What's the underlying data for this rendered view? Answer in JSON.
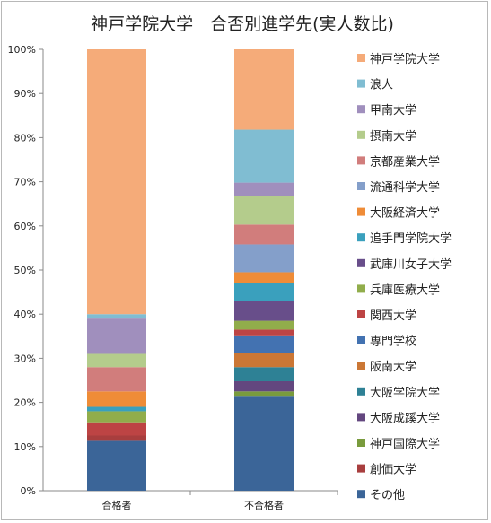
{
  "chart_data": {
    "type": "bar",
    "stacked": true,
    "title": "神戸学院大学　合否別進学先(実人数比)",
    "categories": [
      "合格者",
      "不合格者"
    ],
    "ylim": [
      0,
      100
    ],
    "yticks": [
      "0%",
      "10%",
      "20%",
      "30%",
      "40%",
      "50%",
      "60%",
      "70%",
      "80%",
      "90%",
      "100%"
    ],
    "legend_position": "right",
    "grid": false,
    "series": [
      {
        "name": "その他",
        "color": "#3b6598",
        "values": [
          11.3,
          21.5
        ]
      },
      {
        "name": "創価大学",
        "color": "#a83e3e",
        "values": [
          1.2,
          0.0
        ]
      },
      {
        "name": "神戸国際大学",
        "color": "#799b3d",
        "values": [
          0.0,
          1.0
        ]
      },
      {
        "name": "大阪成蹊大学",
        "color": "#63477f",
        "values": [
          0.0,
          2.3
        ]
      },
      {
        "name": "大阪学院大学",
        "color": "#2e8195",
        "values": [
          0.0,
          3.2
        ]
      },
      {
        "name": "阪南大学",
        "color": "#cb7735",
        "values": [
          0.0,
          3.2
        ]
      },
      {
        "name": "専門学校",
        "color": "#4372b1",
        "values": [
          0.0,
          4.0
        ]
      },
      {
        "name": "関西大学",
        "color": "#bd4444",
        "values": [
          3.0,
          1.3
        ]
      },
      {
        "name": "兵庫医療大学",
        "color": "#91ad4b",
        "values": [
          2.5,
          2.0
        ]
      },
      {
        "name": "武庫川女子大学",
        "color": "#684e8a",
        "values": [
          0.0,
          4.5
        ]
      },
      {
        "name": "追手門学院大学",
        "color": "#3aa0bd",
        "values": [
          1.0,
          4.0
        ]
      },
      {
        "name": "大阪経済大学",
        "color": "#ef8c37",
        "values": [
          3.5,
          2.5
        ]
      },
      {
        "name": "流通科学大学",
        "color": "#849fca",
        "values": [
          0.0,
          6.3
        ]
      },
      {
        "name": "京都産業大学",
        "color": "#d17d7c",
        "values": [
          5.5,
          4.5
        ]
      },
      {
        "name": "摂南大学",
        "color": "#b4cc8c",
        "values": [
          3.0,
          6.5
        ]
      },
      {
        "name": "甲南大学",
        "color": "#a08fbd",
        "values": [
          8.0,
          3.0
        ]
      },
      {
        "name": "浪人",
        "color": "#80bdd2",
        "values": [
          1.0,
          12.0
        ]
      },
      {
        "name": "神戸学院大学",
        "color": "#f5ab79",
        "values": [
          60.0,
          18.2
        ]
      }
    ]
  }
}
